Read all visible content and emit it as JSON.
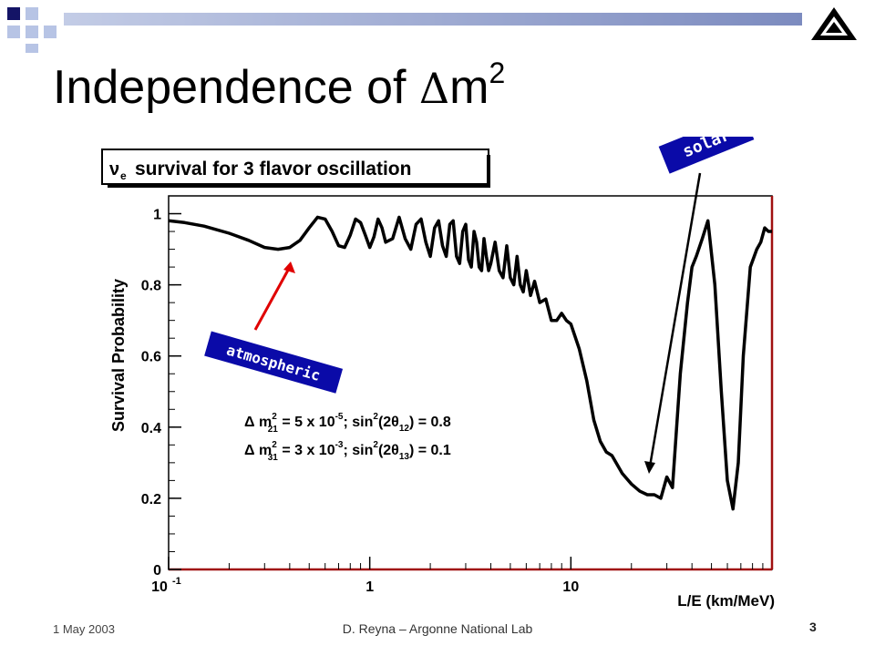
{
  "slide": {
    "title_text": "Independence of ",
    "title_delta": "Δ",
    "title_m": "m",
    "title_sup": "2",
    "footer_date": "1 May 2003",
    "footer_center": "D. Reyna – Argonne National Lab",
    "page_number": "3",
    "accent_color": "#b7c4e5",
    "dark_accent_color": "#141466"
  },
  "chart_data": {
    "type": "line",
    "title": "survival for 3 flavor oscillation",
    "title_prefix": "ν",
    "title_prefix_sub": "e",
    "xlabel": "L/E (km/MeV)",
    "ylabel": "Survival Probability",
    "x_scale": "log",
    "xlim": [
      0.1,
      100
    ],
    "ylim": [
      0,
      1.05
    ],
    "x_ticks": [
      {
        "value": 0.1,
        "label": "10",
        "sup": "-1"
      },
      {
        "value": 1,
        "label": "1",
        "sup": ""
      },
      {
        "value": 10,
        "label": "10",
        "sup": ""
      }
    ],
    "y_ticks": [
      {
        "value": 0,
        "label": "0"
      },
      {
        "value": 0.2,
        "label": "0.2"
      },
      {
        "value": 0.4,
        "label": "0.4"
      },
      {
        "value": 0.6,
        "label": "0.6"
      },
      {
        "value": 0.8,
        "label": "0.8"
      },
      {
        "value": 1,
        "label": "1"
      }
    ],
    "grid": false,
    "series": [
      {
        "x": [
          0.1,
          0.12,
          0.15,
          0.2,
          0.25,
          0.3,
          0.35,
          0.4,
          0.45,
          0.5,
          0.55,
          0.6,
          0.65,
          0.7,
          0.75,
          0.8,
          0.85,
          0.9,
          0.95,
          1.0,
          1.05,
          1.1,
          1.15,
          1.2,
          1.3,
          1.4,
          1.5,
          1.6,
          1.7,
          1.8,
          1.9,
          2.0,
          2.1,
          2.2,
          2.3,
          2.4,
          2.5,
          2.6,
          2.7,
          2.8,
          2.9,
          3.0,
          3.1,
          3.2,
          3.3,
          3.4,
          3.5,
          3.6,
          3.7,
          3.8,
          3.9,
          4.0,
          4.2,
          4.4,
          4.6,
          4.8,
          5.0,
          5.2,
          5.4,
          5.6,
          5.8,
          6.0,
          6.3,
          6.6,
          7.0,
          7.5,
          8.0,
          8.5,
          9.0,
          9.5,
          10,
          11,
          12,
          13,
          14,
          15,
          16,
          18,
          20,
          22,
          24,
          26,
          28,
          30,
          32,
          35,
          38,
          40,
          42,
          45,
          48,
          52,
          56,
          60,
          64,
          68,
          72,
          78,
          84,
          88,
          92,
          96,
          100
        ],
        "values": [
          0.98,
          0.975,
          0.965,
          0.945,
          0.925,
          0.905,
          0.9,
          0.905,
          0.925,
          0.96,
          0.99,
          0.985,
          0.95,
          0.91,
          0.905,
          0.94,
          0.985,
          0.975,
          0.94,
          0.905,
          0.935,
          0.985,
          0.96,
          0.92,
          0.93,
          0.99,
          0.93,
          0.9,
          0.97,
          0.985,
          0.92,
          0.88,
          0.96,
          0.98,
          0.91,
          0.88,
          0.97,
          0.98,
          0.88,
          0.86,
          0.95,
          0.97,
          0.87,
          0.85,
          0.95,
          0.92,
          0.85,
          0.84,
          0.93,
          0.88,
          0.84,
          0.86,
          0.92,
          0.84,
          0.82,
          0.91,
          0.82,
          0.8,
          0.88,
          0.8,
          0.78,
          0.84,
          0.77,
          0.81,
          0.75,
          0.76,
          0.7,
          0.7,
          0.72,
          0.7,
          0.69,
          0.62,
          0.53,
          0.42,
          0.36,
          0.33,
          0.32,
          0.27,
          0.24,
          0.22,
          0.21,
          0.21,
          0.2,
          0.26,
          0.23,
          0.55,
          0.75,
          0.85,
          0.88,
          0.93,
          0.98,
          0.8,
          0.5,
          0.25,
          0.17,
          0.3,
          0.6,
          0.85,
          0.9,
          0.92,
          0.96,
          0.95,
          0.95
        ]
      }
    ],
    "annotations": [
      {
        "text": "solar",
        "color": "#0a0aa8"
      },
      {
        "text": "atmospheric",
        "color": "#0a0aa8"
      }
    ],
    "legend_lines": [
      {
        "delta": "Δ",
        "m": "m",
        "sub": "21",
        "sup": "2",
        "rest": " = 5 x 10",
        "exp": "-5",
        "tail": "; sin",
        "sin_sup": "2",
        "paren": "(2θ",
        "theta_sub": "12",
        "end": ") = 0.8"
      },
      {
        "delta": "Δ",
        "m": "m",
        "sub": "31",
        "sup": "2",
        "rest": " = 3 x 10",
        "exp": "-3",
        "tail": "; sin",
        "sin_sup": "2",
        "paren": "(2θ",
        "theta_sub": "13",
        "end": ") = 0.1"
      }
    ]
  }
}
